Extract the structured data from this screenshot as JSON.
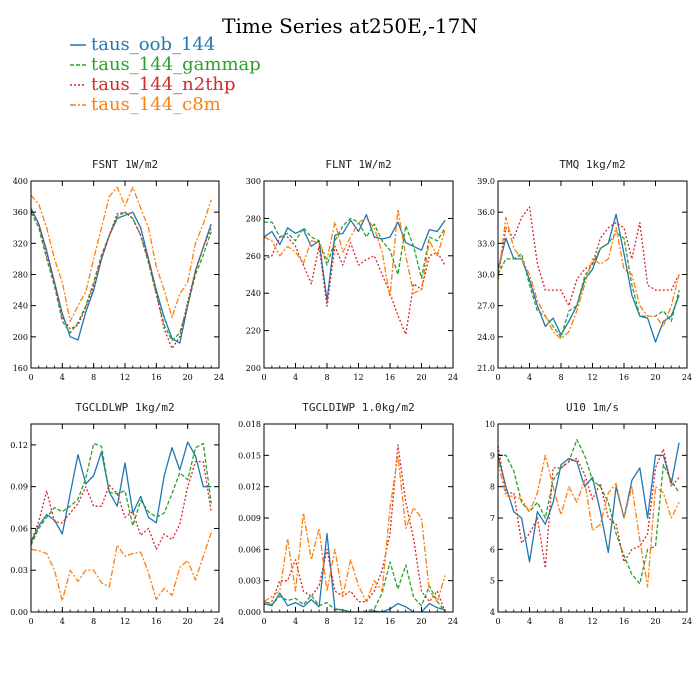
{
  "title": "Time Series at250E,-17N",
  "legend": [
    {
      "name": "taus_oob_144",
      "color": "#1f77b4",
      "dash": ""
    },
    {
      "name": "taus_144_gammap",
      "color": "#2ca02c",
      "dash": "4,2"
    },
    {
      "name": "taus_144_n2thp",
      "color": "#d62728",
      "dash": "2,2"
    },
    {
      "name": "taus_144_c8m",
      "color": "#ff7f0e",
      "dash": "6,2,2,2"
    }
  ],
  "chart_data": [
    {
      "type": "line",
      "title": "FSNT   1W/m2",
      "xlim": [
        0,
        24
      ],
      "ylim": [
        160,
        400
      ],
      "xticks": [
        "0",
        "4",
        "8",
        "12",
        "16",
        "20",
        "24"
      ],
      "yticks": [
        "160",
        "200",
        "240",
        "280",
        "320",
        "360",
        "400"
      ],
      "x": [
        0,
        1,
        2,
        3,
        4,
        5,
        6,
        7,
        8,
        9,
        10,
        11,
        12,
        13,
        14,
        15,
        16,
        17,
        18,
        19,
        20,
        21,
        22,
        23
      ],
      "series": [
        {
          "name": "taus_oob_144",
          "values": [
            365,
            345,
            310,
            270,
            230,
            200,
            196,
            232,
            260,
            300,
            330,
            352,
            356,
            360,
            340,
            300,
            260,
            225,
            198,
            192,
            240,
            285,
            315,
            345
          ]
        },
        {
          "name": "taus_144_gammap",
          "values": [
            360,
            340,
            300,
            265,
            220,
            205,
            218,
            240,
            270,
            305,
            330,
            355,
            360,
            352,
            330,
            295,
            255,
            215,
            195,
            205,
            240,
            280,
            305,
            335
          ]
        },
        {
          "name": "taus_144_n2thp",
          "values": [
            362,
            345,
            305,
            270,
            225,
            210,
            215,
            238,
            265,
            300,
            330,
            358,
            360,
            352,
            330,
            298,
            255,
            210,
            185,
            200,
            245,
            285,
            315,
            340
          ]
        },
        {
          "name": "taus_144_c8m",
          "values": [
            382,
            370,
            340,
            300,
            270,
            220,
            240,
            258,
            300,
            340,
            380,
            392,
            368,
            392,
            365,
            340,
            290,
            260,
            225,
            255,
            270,
            320,
            345,
            376
          ]
        }
      ]
    },
    {
      "type": "line",
      "title": "FLNT   1W/m2",
      "xlim": [
        0,
        24
      ],
      "ylim": [
        200,
        300
      ],
      "xticks": [
        "0",
        "4",
        "8",
        "12",
        "16",
        "20",
        "24"
      ],
      "yticks": [
        "200",
        "220",
        "240",
        "260",
        "280",
        "300"
      ],
      "x": [
        0,
        1,
        2,
        3,
        4,
        5,
        6,
        7,
        8,
        9,
        10,
        11,
        12,
        13,
        14,
        15,
        16,
        17,
        18,
        19,
        20,
        21,
        22,
        23
      ],
      "series": [
        {
          "name": "taus_oob_144",
          "values": [
            270,
            273,
            266,
            275,
            272,
            274,
            265,
            268,
            236,
            271,
            272,
            279,
            273,
            282,
            270,
            269,
            270,
            278,
            267,
            265,
            263,
            274,
            273,
            279
          ]
        },
        {
          "name": "taus_144_gammap",
          "values": [
            278,
            278,
            270,
            272,
            268,
            275,
            270,
            268,
            255,
            268,
            276,
            280,
            278,
            270,
            277,
            268,
            263,
            250,
            276,
            265,
            248,
            270,
            268,
            275
          ]
        },
        {
          "name": "taus_144_n2thp",
          "values": [
            258,
            260,
            270,
            270,
            265,
            255,
            245,
            265,
            233,
            265,
            255,
            267,
            255,
            258,
            260,
            250,
            240,
            228,
            218,
            245,
            242,
            260,
            262,
            255
          ]
        },
        {
          "name": "taus_144_c8m",
          "values": [
            270,
            268,
            260,
            265,
            262,
            256,
            268,
            267,
            258,
            278,
            262,
            270,
            278,
            280,
            275,
            262,
            238,
            285,
            260,
            240,
            242,
            268,
            260,
            274
          ]
        }
      ]
    },
    {
      "type": "line",
      "title": "TMQ   1kg/m2",
      "xlim": [
        0,
        24
      ],
      "ylim": [
        21.0,
        39.0
      ],
      "xticks": [
        "0",
        "4",
        "8",
        "12",
        "16",
        "20",
        "24"
      ],
      "yticks": [
        "21.0",
        "24.0",
        "27.0",
        "30.0",
        "33.0",
        "36.0",
        "39.0"
      ],
      "x": [
        0,
        1,
        2,
        3,
        4,
        5,
        6,
        7,
        8,
        9,
        10,
        11,
        12,
        13,
        14,
        15,
        16,
        17,
        18,
        19,
        20,
        21,
        22,
        23
      ],
      "series": [
        {
          "name": "taus_oob_144",
          "values": [
            30.5,
            33.5,
            31.5,
            31.5,
            29.5,
            27.0,
            25.0,
            25.8,
            24.2,
            25.5,
            27.0,
            29.5,
            30.5,
            32.5,
            33.0,
            35.8,
            32.0,
            28.0,
            26.0,
            25.8,
            23.5,
            25.5,
            26.0,
            28.0
          ]
        },
        {
          "name": "taus_144_gammap",
          "values": [
            30.0,
            31.5,
            31.5,
            32.0,
            29.0,
            26.5,
            26.0,
            25.0,
            24.0,
            26.5,
            27.0,
            29.8,
            31.0,
            32.5,
            33.0,
            34.0,
            33.5,
            29.0,
            26.0,
            26.0,
            26.0,
            26.5,
            25.5,
            28.5
          ]
        },
        {
          "name": "taus_144_n2thp",
          "values": [
            29.5,
            34.5,
            33.5,
            35.5,
            36.5,
            31.0,
            28.5,
            28.5,
            28.5,
            27.0,
            29.5,
            30.5,
            31.0,
            33.5,
            34.5,
            35.0,
            34.5,
            31.5,
            35.0,
            29.0,
            28.5,
            28.5,
            28.5,
            30.0
          ]
        },
        {
          "name": "taus_144_c8m",
          "values": [
            29.5,
            35.5,
            32.5,
            31.5,
            30.0,
            27.5,
            26.0,
            24.5,
            23.8,
            24.5,
            26.5,
            29.0,
            31.5,
            31.0,
            31.5,
            34.5,
            30.5,
            30.0,
            27.0,
            26.0,
            26.0,
            25.0,
            27.0,
            30.0
          ]
        }
      ]
    },
    {
      "type": "line",
      "title": "TGCLDLWP   1kg/m2",
      "xlim": [
        0,
        24
      ],
      "ylim": [
        0.0,
        0.135
      ],
      "xticks": [
        "0",
        "4",
        "8",
        "12",
        "16",
        "20",
        "24"
      ],
      "yticks": [
        "0.00",
        "0.03",
        "0.06",
        "0.09",
        "0.12"
      ],
      "x": [
        0,
        1,
        2,
        3,
        4,
        5,
        6,
        7,
        8,
        9,
        10,
        11,
        12,
        13,
        14,
        15,
        16,
        17,
        18,
        19,
        20,
        21,
        22,
        23
      ],
      "series": [
        {
          "name": "taus_oob_144",
          "values": [
            0.05,
            0.062,
            0.07,
            0.066,
            0.056,
            0.085,
            0.113,
            0.092,
            0.098,
            0.115,
            0.086,
            0.076,
            0.107,
            0.071,
            0.083,
            0.068,
            0.064,
            0.098,
            0.118,
            0.102,
            0.122,
            0.112,
            0.09,
            0.09
          ]
        },
        {
          "name": "taus_144_gammap",
          "values": [
            0.048,
            0.06,
            0.068,
            0.075,
            0.072,
            0.076,
            0.081,
            0.096,
            0.121,
            0.119,
            0.086,
            0.085,
            0.087,
            0.062,
            0.08,
            0.072,
            0.068,
            0.071,
            0.085,
            0.1,
            0.095,
            0.118,
            0.121,
            0.078
          ]
        },
        {
          "name": "taus_144_n2thp",
          "values": [
            0.05,
            0.065,
            0.087,
            0.065,
            0.064,
            0.071,
            0.078,
            0.09,
            0.076,
            0.076,
            0.091,
            0.085,
            0.068,
            0.072,
            0.055,
            0.06,
            0.045,
            0.056,
            0.052,
            0.063,
            0.09,
            0.108,
            0.108,
            0.072
          ]
        },
        {
          "name": "taus_144_c8m",
          "values": [
            0.045,
            0.044,
            0.042,
            0.03,
            0.008,
            0.03,
            0.022,
            0.03,
            0.03,
            0.021,
            0.018,
            0.048,
            0.04,
            0.042,
            0.043,
            0.028,
            0.009,
            0.017,
            0.012,
            0.032,
            0.037,
            0.023,
            0.04,
            0.057
          ]
        }
      ]
    },
    {
      "type": "line",
      "title": "TGCLDIWP   1.0kg/m2",
      "xlim": [
        0,
        24
      ],
      "ylim": [
        0.0,
        0.018
      ],
      "xticks": [
        "0",
        "4",
        "8",
        "12",
        "16",
        "20",
        "24"
      ],
      "yticks": [
        "0.000",
        "0.003",
        "0.006",
        "0.009",
        "0.012",
        "0.015",
        "0.018"
      ],
      "x": [
        0,
        1,
        2,
        3,
        4,
        5,
        6,
        7,
        8,
        9,
        10,
        11,
        12,
        13,
        14,
        15,
        16,
        17,
        18,
        19,
        20,
        21,
        22,
        23
      ],
      "series": [
        {
          "name": "taus_oob_144",
          "values": [
            0.0008,
            0.0006,
            0.0018,
            0.0006,
            0.0009,
            0.0005,
            0.0012,
            0.0005,
            0.0075,
            0.0003,
            0.0002,
            0.0,
            0.0,
            0.0,
            0.0001,
            0.0,
            0.0003,
            0.0008,
            0.0005,
            0.0,
            0.0,
            0.0008,
            0.0004,
            0.0002
          ]
        },
        {
          "name": "taus_144_gammap",
          "values": [
            0.001,
            0.0007,
            0.0015,
            0.0011,
            0.0013,
            0.0007,
            0.0016,
            0.0006,
            0.0009,
            0.0002,
            0.0002,
            0.0,
            0.0,
            0.0001,
            0.0003,
            0.0018,
            0.0048,
            0.0022,
            0.0045,
            0.0014,
            0.0006,
            0.0025,
            0.001,
            0.0
          ]
        },
        {
          "name": "taus_144_n2thp",
          "values": [
            0.0007,
            0.001,
            0.003,
            0.003,
            0.005,
            0.002,
            0.0015,
            0.0025,
            0.006,
            0.002,
            0.0015,
            0.002,
            0.001,
            0.001,
            0.002,
            0.004,
            0.0075,
            0.016,
            0.0105,
            0.007,
            0.002,
            0.001,
            0.002,
            0.0
          ]
        },
        {
          "name": "taus_144_c8m",
          "values": [
            0.001,
            0.0015,
            0.002,
            0.007,
            0.002,
            0.0095,
            0.005,
            0.008,
            0.002,
            0.006,
            0.0015,
            0.005,
            0.0025,
            0.001,
            0.003,
            0.002,
            0.01,
            0.015,
            0.008,
            0.01,
            0.009,
            0.002,
            0.001,
            0.0035
          ]
        }
      ]
    },
    {
      "type": "line",
      "title": "U10   1m/s",
      "xlim": [
        0,
        24
      ],
      "ylim": [
        4,
        10
      ],
      "xticks": [
        "0",
        "4",
        "8",
        "12",
        "16",
        "20",
        "24"
      ],
      "yticks": [
        "4",
        "5",
        "6",
        "7",
        "8",
        "9",
        "10"
      ],
      "x": [
        0,
        1,
        2,
        3,
        4,
        5,
        6,
        7,
        8,
        9,
        10,
        11,
        12,
        13,
        14,
        15,
        16,
        17,
        18,
        19,
        20,
        21,
        22,
        23
      ],
      "series": [
        {
          "name": "taus_oob_144",
          "values": [
            9.0,
            8.0,
            7.2,
            7.0,
            5.6,
            7.2,
            6.8,
            7.5,
            8.7,
            8.9,
            8.8,
            8.0,
            8.3,
            7.2,
            5.9,
            8.0,
            7.0,
            8.2,
            8.6,
            7.0,
            9.0,
            9.0,
            8.1,
            9.4
          ]
        },
        {
          "name": "taus_144_gammap",
          "values": [
            9.0,
            9.0,
            8.5,
            7.5,
            7.2,
            7.5,
            7.0,
            8.2,
            8.6,
            8.8,
            9.5,
            9.0,
            8.2,
            8.0,
            7.5,
            6.5,
            5.8,
            5.2,
            4.9,
            6.0,
            6.1,
            8.7,
            8.2,
            7.8
          ]
        },
        {
          "name": "taus_144_n2thp",
          "values": [
            9.3,
            7.8,
            7.8,
            6.2,
            6.5,
            7.0,
            5.4,
            8.6,
            8.6,
            8.8,
            8.9,
            8.4,
            7.6,
            8.1,
            7.0,
            6.8,
            5.6,
            6.0,
            6.1,
            6.5,
            8.6,
            9.2,
            8.0,
            8.3
          ]
        },
        {
          "name": "taus_144_c8m",
          "values": [
            8.8,
            7.7,
            7.7,
            7.6,
            7.2,
            7.8,
            9.0,
            8.0,
            7.1,
            8.0,
            7.5,
            8.2,
            6.6,
            6.8,
            7.8,
            8.1,
            7.0,
            8.0,
            6.3,
            4.8,
            8.0,
            7.8,
            7.0,
            7.5
          ]
        }
      ]
    }
  ]
}
